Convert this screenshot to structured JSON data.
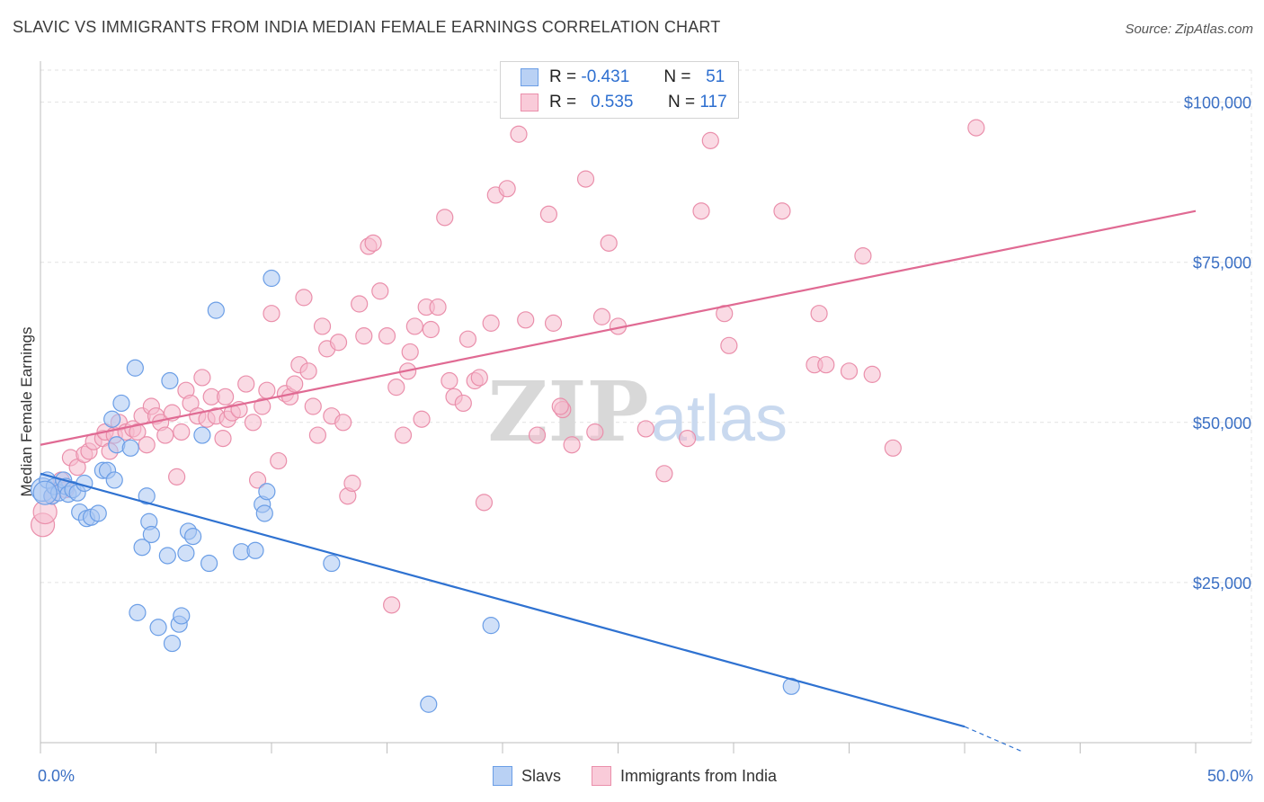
{
  "title": "SLAVIC VS IMMIGRANTS FROM INDIA MEDIAN FEMALE EARNINGS CORRELATION CHART",
  "source": "Source: ZipAtlas.com",
  "watermark": {
    "zip": "ZIP",
    "atlas": "atlas"
  },
  "legend": {
    "rows": [
      {
        "r_label": "R =",
        "r_value": "-0.431",
        "n_label": "N =",
        "n_value": "51"
      },
      {
        "r_label": "R =",
        "r_value": "0.535",
        "n_label": "N =",
        "n_value": "117"
      }
    ]
  },
  "chart_data": {
    "type": "scatter",
    "xlabel": "",
    "ylabel": "Median Female Earnings",
    "xlim": [
      0,
      50
    ],
    "ylim": [
      0,
      105000
    ],
    "x_tick_labels": [
      "0.0%",
      "50.0%"
    ],
    "y_ticks": [
      {
        "value": 25000,
        "label": "$25,000"
      },
      {
        "value": 50000,
        "label": "$50,000"
      },
      {
        "value": 75000,
        "label": "$75,000"
      },
      {
        "value": 100000,
        "label": "$100,000"
      }
    ],
    "grid": true,
    "legend_position": "top-center",
    "colors": {
      "slavs_fill": "#a9c7f2",
      "slavs_stroke": "#6b9ee6",
      "slavs_line": "#2f72d1",
      "india_fill": "#f6bccd",
      "india_stroke": "#ea8fab",
      "india_line": "#e06a93"
    },
    "series": [
      {
        "name": "Slavs",
        "trend": {
          "x": [
            0,
            40
          ],
          "y": [
            42000,
            2500
          ],
          "dashed_to": [
            42.5,
            0
          ]
        },
        "points": [
          [
            0.1,
            39500
          ],
          [
            0.3,
            41000
          ],
          [
            0.5,
            38500
          ],
          [
            0.6,
            40000
          ],
          [
            0.8,
            39000
          ],
          [
            1.0,
            41000
          ],
          [
            1.1,
            40000
          ],
          [
            1.2,
            38800
          ],
          [
            1.4,
            39500
          ],
          [
            1.6,
            39000
          ],
          [
            1.7,
            36000
          ],
          [
            1.9,
            40500
          ],
          [
            2.0,
            35000
          ],
          [
            2.2,
            35200
          ],
          [
            2.5,
            35800
          ],
          [
            2.7,
            42500
          ],
          [
            2.9,
            42500
          ],
          [
            3.2,
            41000
          ],
          [
            3.1,
            50500
          ],
          [
            3.3,
            46500
          ],
          [
            3.5,
            53000
          ],
          [
            3.9,
            46000
          ],
          [
            4.1,
            58500
          ],
          [
            4.2,
            20300
          ],
          [
            4.4,
            30500
          ],
          [
            4.6,
            38500
          ],
          [
            4.7,
            34500
          ],
          [
            4.8,
            32500
          ],
          [
            5.1,
            18000
          ],
          [
            5.5,
            29200
          ],
          [
            5.6,
            56500
          ],
          [
            5.7,
            15500
          ],
          [
            6.0,
            18500
          ],
          [
            6.1,
            19800
          ],
          [
            6.3,
            29600
          ],
          [
            6.4,
            33000
          ],
          [
            6.6,
            32200
          ],
          [
            7.0,
            48000
          ],
          [
            7.3,
            28000
          ],
          [
            7.6,
            67500
          ],
          [
            8.7,
            29800
          ],
          [
            9.3,
            30000
          ],
          [
            9.6,
            37200
          ],
          [
            9.7,
            35800
          ],
          [
            9.8,
            39200
          ],
          [
            10.0,
            72500
          ],
          [
            12.6,
            28000
          ],
          [
            16.8,
            6000
          ],
          [
            19.5,
            18300
          ],
          [
            32.5,
            8800
          ],
          [
            0.2,
            39000
          ]
        ]
      },
      {
        "name": "Immigrants from India",
        "trend": {
          "x": [
            0,
            50
          ],
          "y": [
            46500,
            83000
          ]
        },
        "points": [
          [
            0.1,
            34000
          ],
          [
            0.2,
            36000
          ],
          [
            0.5,
            38500
          ],
          [
            0.9,
            41000
          ],
          [
            1.1,
            39500
          ],
          [
            1.3,
            44500
          ],
          [
            1.6,
            43000
          ],
          [
            1.9,
            45000
          ],
          [
            2.1,
            45500
          ],
          [
            2.3,
            47000
          ],
          [
            2.7,
            47500
          ],
          [
            2.8,
            48500
          ],
          [
            3.0,
            45500
          ],
          [
            3.2,
            48000
          ],
          [
            3.4,
            50000
          ],
          [
            3.7,
            48500
          ],
          [
            4.0,
            49000
          ],
          [
            4.2,
            48500
          ],
          [
            4.4,
            51000
          ],
          [
            4.6,
            46500
          ],
          [
            4.8,
            52500
          ],
          [
            5.0,
            51000
          ],
          [
            5.2,
            50000
          ],
          [
            5.4,
            48000
          ],
          [
            5.7,
            51500
          ],
          [
            5.9,
            41500
          ],
          [
            6.1,
            48500
          ],
          [
            6.3,
            55000
          ],
          [
            6.5,
            53000
          ],
          [
            6.8,
            51000
          ],
          [
            7.0,
            57000
          ],
          [
            7.2,
            50500
          ],
          [
            7.4,
            54000
          ],
          [
            7.6,
            51000
          ],
          [
            7.9,
            47500
          ],
          [
            8.1,
            50500
          ],
          [
            8.3,
            51500
          ],
          [
            8.6,
            52000
          ],
          [
            8.9,
            56000
          ],
          [
            9.2,
            50000
          ],
          [
            9.4,
            41000
          ],
          [
            9.6,
            52500
          ],
          [
            9.8,
            55000
          ],
          [
            10.0,
            67000
          ],
          [
            10.3,
            44000
          ],
          [
            10.6,
            54500
          ],
          [
            10.8,
            54000
          ],
          [
            11.0,
            56000
          ],
          [
            11.2,
            59000
          ],
          [
            11.4,
            69500
          ],
          [
            11.6,
            58000
          ],
          [
            11.8,
            52500
          ],
          [
            12.0,
            48000
          ],
          [
            12.2,
            65000
          ],
          [
            12.4,
            61500
          ],
          [
            12.6,
            51000
          ],
          [
            12.9,
            62500
          ],
          [
            13.1,
            50000
          ],
          [
            13.3,
            38500
          ],
          [
            13.5,
            40500
          ],
          [
            13.8,
            68500
          ],
          [
            14.0,
            63500
          ],
          [
            14.2,
            77500
          ],
          [
            14.4,
            78000
          ],
          [
            14.7,
            70500
          ],
          [
            15.0,
            63500
          ],
          [
            15.2,
            21500
          ],
          [
            15.4,
            55500
          ],
          [
            15.7,
            48000
          ],
          [
            15.9,
            58000
          ],
          [
            16.2,
            65000
          ],
          [
            16.5,
            50500
          ],
          [
            16.7,
            68000
          ],
          [
            16.9,
            64500
          ],
          [
            17.2,
            68000
          ],
          [
            17.5,
            82000
          ],
          [
            17.7,
            56500
          ],
          [
            17.9,
            54000
          ],
          [
            18.3,
            53000
          ],
          [
            18.5,
            63000
          ],
          [
            18.8,
            56500
          ],
          [
            19.0,
            57000
          ],
          [
            19.2,
            37500
          ],
          [
            19.5,
            65500
          ],
          [
            19.7,
            85500
          ],
          [
            20.2,
            86500
          ],
          [
            20.7,
            95000
          ],
          [
            21.0,
            66000
          ],
          [
            21.5,
            48000
          ],
          [
            22.0,
            82500
          ],
          [
            22.2,
            65500
          ],
          [
            22.6,
            52000
          ],
          [
            23.0,
            46500
          ],
          [
            23.6,
            88000
          ],
          [
            24.0,
            48500
          ],
          [
            24.3,
            66500
          ],
          [
            24.6,
            78000
          ],
          [
            25.0,
            65000
          ],
          [
            26.2,
            49000
          ],
          [
            27.0,
            42000
          ],
          [
            28.0,
            47500
          ],
          [
            28.6,
            83000
          ],
          [
            29.0,
            94000
          ],
          [
            29.6,
            67000
          ],
          [
            29.8,
            62000
          ],
          [
            32.1,
            83000
          ],
          [
            33.5,
            59000
          ],
          [
            33.7,
            67000
          ],
          [
            34.0,
            59000
          ],
          [
            35.0,
            58000
          ],
          [
            35.6,
            76000
          ],
          [
            36.0,
            57500
          ],
          [
            36.9,
            46000
          ],
          [
            40.5,
            96000
          ],
          [
            22.5,
            52500
          ],
          [
            16.0,
            61000
          ],
          [
            8.0,
            54000
          ]
        ]
      }
    ]
  },
  "bottom_legend": [
    {
      "label": "Slavs"
    },
    {
      "label": "Immigrants from India"
    }
  ]
}
